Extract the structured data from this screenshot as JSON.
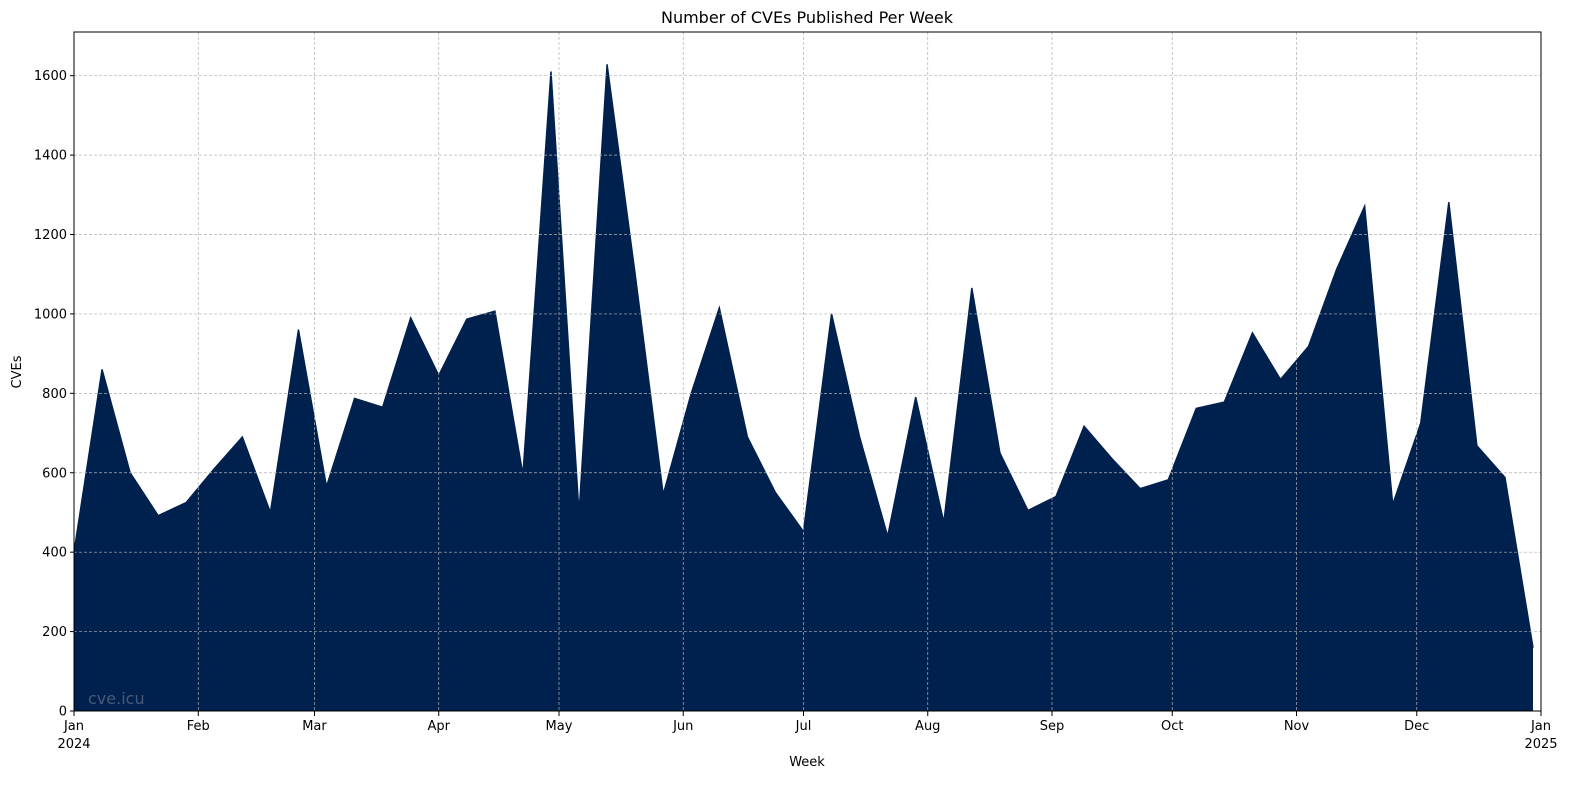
{
  "chart_data": {
    "type": "area",
    "title": "Number of CVEs Published Per Week",
    "xlabel": "Week",
    "ylabel": "CVEs",
    "watermark": "cve.icu",
    "ylim": [
      0,
      1710
    ],
    "yticks": [
      0,
      200,
      400,
      600,
      800,
      1000,
      1200,
      1400,
      1600
    ],
    "xlim": [
      "2024-01-01",
      "2025-01-01"
    ],
    "xticks": [
      {
        "date": "2024-01-01",
        "label": "Jan",
        "sublabel": "2024"
      },
      {
        "date": "2024-02-01",
        "label": "Feb"
      },
      {
        "date": "2024-03-01",
        "label": "Mar"
      },
      {
        "date": "2024-04-01",
        "label": "Apr"
      },
      {
        "date": "2024-05-01",
        "label": "May"
      },
      {
        "date": "2024-06-01",
        "label": "Jun"
      },
      {
        "date": "2024-07-01",
        "label": "Jul"
      },
      {
        "date": "2024-08-01",
        "label": "Aug"
      },
      {
        "date": "2024-09-01",
        "label": "Sep"
      },
      {
        "date": "2024-10-01",
        "label": "Oct"
      },
      {
        "date": "2024-11-01",
        "label": "Nov"
      },
      {
        "date": "2024-12-01",
        "label": "Dec"
      },
      {
        "date": "2025-01-01",
        "label": "Jan",
        "sublabel": "2025"
      }
    ],
    "grid": true,
    "fill_color": "#00204E",
    "grid_color": "#b0b0b0",
    "watermark_color": "#4a5a78",
    "x": [
      "2024-01-01",
      "2024-01-08",
      "2024-01-15",
      "2024-01-22",
      "2024-01-29",
      "2024-02-05",
      "2024-02-12",
      "2024-02-19",
      "2024-02-26",
      "2024-03-04",
      "2024-03-11",
      "2024-03-18",
      "2024-03-25",
      "2024-04-01",
      "2024-04-08",
      "2024-04-15",
      "2024-04-22",
      "2024-04-29",
      "2024-05-06",
      "2024-05-13",
      "2024-05-20",
      "2024-05-27",
      "2024-06-03",
      "2024-06-10",
      "2024-06-17",
      "2024-06-24",
      "2024-07-01",
      "2024-07-08",
      "2024-07-15",
      "2024-07-22",
      "2024-07-29",
      "2024-08-05",
      "2024-08-12",
      "2024-08-19",
      "2024-08-26",
      "2024-09-02",
      "2024-09-09",
      "2024-09-16",
      "2024-09-23",
      "2024-09-30",
      "2024-10-07",
      "2024-10-14",
      "2024-10-21",
      "2024-10-28",
      "2024-11-04",
      "2024-11-11",
      "2024-11-18",
      "2024-11-25",
      "2024-12-02",
      "2024-12-09",
      "2024-12-16",
      "2024-12-23",
      "2024-12-30"
    ],
    "values": [
      400,
      860,
      600,
      492,
      525,
      610,
      690,
      500,
      960,
      565,
      787,
      765,
      990,
      845,
      987,
      1007,
      595,
      1610,
      497,
      1628,
      1100,
      545,
      800,
      1015,
      690,
      550,
      452,
      1000,
      690,
      440,
      790,
      475,
      1065,
      650,
      505,
      540,
      717,
      635,
      560,
      582,
      762,
      778,
      952,
      835,
      918,
      1112,
      1271,
      520,
      725,
      1281,
      668,
      588,
      160
    ]
  }
}
